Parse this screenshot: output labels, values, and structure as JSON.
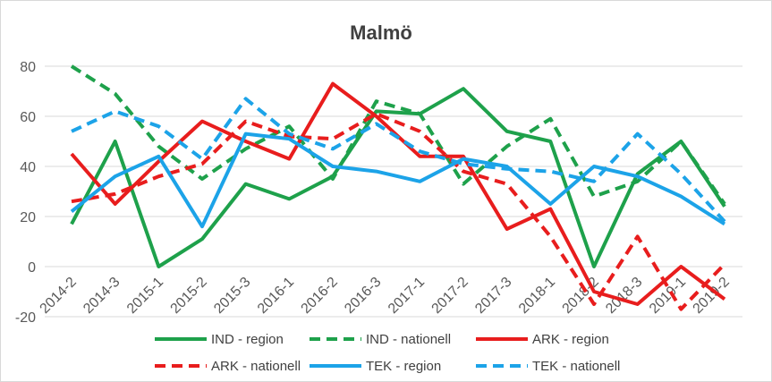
{
  "chart_data": {
    "type": "line",
    "title": "Malmö",
    "xlabel": "",
    "ylabel": "",
    "ylim": [
      -20,
      80
    ],
    "yticks": [
      -20,
      0,
      20,
      40,
      60,
      80
    ],
    "grid": "horizontal",
    "legend_position": "bottom",
    "categories": [
      "2014-2",
      "2014-3",
      "2015-1",
      "2015-2",
      "2015-3",
      "2016-1",
      "2016-2",
      "2016-3",
      "2017-1",
      "2017-2",
      "2017-3",
      "2018-1",
      "2018-2",
      "2018-3",
      "2019-1",
      "2019-2"
    ],
    "series": [
      {
        "name": "IND - region",
        "color": "#1ea14b",
        "dash": "solid",
        "values": [
          17,
          50,
          0,
          11,
          33,
          27,
          36,
          62,
          61,
          71,
          54,
          50,
          0,
          37,
          50,
          24
        ]
      },
      {
        "name": "IND - nationell",
        "color": "#1ea14b",
        "dash": "dashed",
        "values": [
          80,
          69,
          48,
          35,
          47,
          56,
          35,
          66,
          61,
          33,
          48,
          59,
          28,
          34,
          50,
          25
        ]
      },
      {
        "name": "ARK - region",
        "color": "#e81d1d",
        "dash": "solid",
        "values": [
          45,
          25,
          42,
          58,
          50,
          43,
          73,
          60,
          44,
          44,
          15,
          23,
          -10,
          -15,
          0,
          -13
        ]
      },
      {
        "name": "ARK - nationell",
        "color": "#e81d1d",
        "dash": "dashed",
        "values": [
          26,
          29,
          36,
          41,
          58,
          52,
          51,
          61,
          54,
          38,
          33,
          12,
          -15,
          12,
          -17,
          1
        ]
      },
      {
        "name": "TEK - region",
        "color": "#1ca3e8",
        "dash": "solid",
        "values": [
          22,
          36,
          44,
          16,
          53,
          51,
          40,
          38,
          34,
          43,
          40,
          25,
          40,
          36,
          28,
          17
        ]
      },
      {
        "name": "TEK - nationell",
        "color": "#1ca3e8",
        "dash": "dashed",
        "values": [
          54,
          62,
          56,
          43,
          67,
          53,
          47,
          57,
          46,
          41,
          39,
          38,
          34,
          53,
          37,
          18
        ]
      }
    ]
  }
}
